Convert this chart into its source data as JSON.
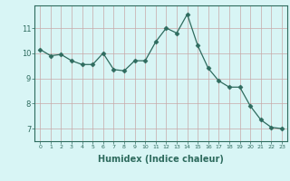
{
  "x": [
    0,
    1,
    2,
    3,
    4,
    5,
    6,
    7,
    8,
    9,
    10,
    11,
    12,
    13,
    14,
    15,
    16,
    17,
    18,
    19,
    20,
    21,
    22,
    23
  ],
  "y": [
    10.15,
    9.9,
    9.95,
    9.7,
    9.55,
    9.55,
    10.0,
    9.35,
    9.3,
    9.7,
    9.7,
    10.45,
    11.0,
    10.8,
    11.55,
    10.3,
    9.4,
    8.9,
    8.65,
    8.65,
    7.9,
    7.35,
    7.05,
    7.0
  ],
  "line_color": "#2e6b5e",
  "marker": "D",
  "marker_size": 2.5,
  "bg_color": "#d8f5f5",
  "grid_color": "#c8a8a8",
  "axis_color": "#2e6b5e",
  "xlabel": "Humidex (Indice chaleur)",
  "xlabel_fontsize": 7,
  "ylabel_ticks": [
    7,
    8,
    9,
    10,
    11
  ],
  "xlim": [
    -0.5,
    23.5
  ],
  "ylim": [
    6.5,
    11.9
  ]
}
